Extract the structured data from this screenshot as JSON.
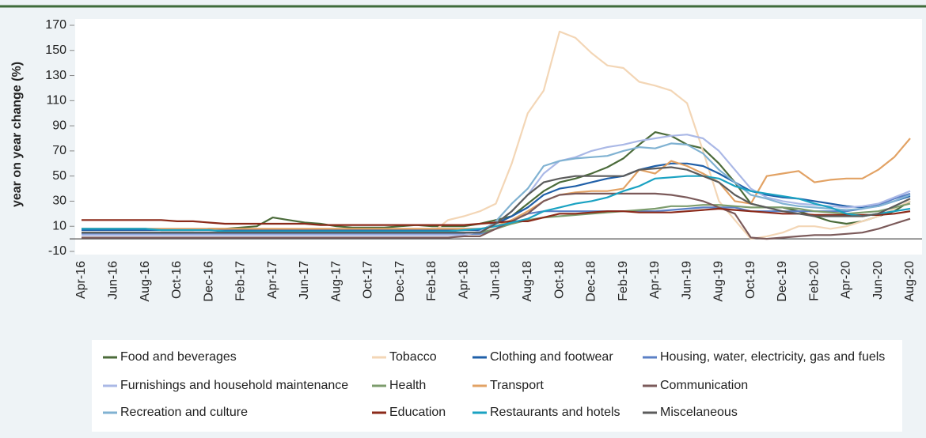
{
  "chart_data": {
    "type": "line",
    "ylabel": "year on year change (%)",
    "ylim": [
      -10,
      170
    ],
    "yticks": [
      -10,
      10,
      30,
      50,
      70,
      90,
      110,
      130,
      150,
      170
    ],
    "categories": [
      "Apr-16",
      null,
      "Jun-16",
      null,
      "Aug-16",
      null,
      "Oct-16",
      null,
      "Dec-16",
      null,
      "Feb-17",
      null,
      "Apr-17",
      null,
      "Jun-17",
      null,
      "Aug-17",
      null,
      "Oct-17",
      null,
      "Dec-17",
      null,
      "Feb-18",
      null,
      "Apr-18",
      null,
      "Jun-18",
      null,
      "Aug-18",
      null,
      "Oct-18",
      null,
      "Dec-18",
      null,
      "Feb-19",
      null,
      "Apr-19",
      null,
      "Jun-19",
      null,
      "Aug-19",
      null,
      "Oct-19",
      null,
      "Dec-19",
      null,
      "Feb-20",
      null,
      "Apr-20",
      null,
      "Jun-20",
      null,
      "Aug-20"
    ],
    "series": [
      {
        "name": "Food and beverages",
        "color": "#4b6b3a",
        "values": [
          8,
          8,
          8,
          8,
          8,
          7,
          7,
          7,
          8,
          8,
          9,
          10,
          17,
          15,
          13,
          12,
          10,
          9,
          9,
          9,
          10,
          11,
          10,
          10,
          10,
          12,
          15,
          18,
          28,
          38,
          45,
          48,
          52,
          57,
          64,
          75,
          85,
          82,
          75,
          72,
          60,
          45,
          28,
          25,
          25,
          22,
          18,
          14,
          12,
          14,
          18,
          22,
          30
        ]
      },
      {
        "name": "Tobacco",
        "color": "#f3d6b6",
        "values": [
          5,
          5,
          5,
          5,
          5,
          5,
          5,
          5,
          5,
          5,
          5,
          5,
          5,
          5,
          5,
          5,
          5,
          5,
          5,
          5,
          5,
          5,
          5,
          15,
          18,
          22,
          28,
          60,
          100,
          118,
          165,
          160,
          148,
          138,
          136,
          125,
          122,
          118,
          108,
          70,
          30,
          15,
          0,
          2,
          5,
          10,
          10,
          8,
          10,
          14,
          18,
          24,
          30
        ]
      },
      {
        "name": "Clothing and footwear",
        "color": "#1f5fa8",
        "values": [
          7,
          7,
          7,
          7,
          7,
          7,
          7,
          7,
          7,
          7,
          7,
          7,
          7,
          7,
          7,
          7,
          7,
          7,
          7,
          7,
          7,
          7,
          7,
          7,
          7,
          7,
          12,
          18,
          25,
          35,
          40,
          42,
          45,
          48,
          50,
          55,
          58,
          60,
          60,
          58,
          52,
          45,
          38,
          35,
          33,
          32,
          30,
          28,
          26,
          25,
          26,
          30,
          34
        ]
      },
      {
        "name": "Housing, water, electricity, gas and fuels",
        "color": "#5b80c6",
        "values": [
          4,
          4,
          4,
          4,
          4,
          4,
          4,
          4,
          4,
          4,
          4,
          4,
          4,
          4,
          4,
          4,
          4,
          4,
          4,
          4,
          4,
          4,
          4,
          4,
          4,
          4,
          8,
          15,
          20,
          22,
          22,
          22,
          22,
          22,
          22,
          22,
          22,
          23,
          24,
          25,
          25,
          25,
          22,
          22,
          22,
          22,
          22,
          22,
          22,
          24,
          27,
          32,
          36
        ]
      },
      {
        "name": "Furnishings and household maintenance",
        "color": "#aab8e6",
        "values": [
          3,
          3,
          3,
          3,
          3,
          3,
          3,
          3,
          3,
          3,
          3,
          3,
          3,
          3,
          3,
          3,
          3,
          3,
          3,
          3,
          3,
          3,
          3,
          3,
          3,
          6,
          12,
          22,
          35,
          52,
          62,
          65,
          70,
          73,
          75,
          78,
          80,
          82,
          83,
          80,
          70,
          55,
          40,
          33,
          30,
          28,
          27,
          26,
          25,
          26,
          28,
          33,
          38
        ]
      },
      {
        "name": "Health",
        "color": "#7c9c6c",
        "values": [
          5,
          5,
          5,
          5,
          5,
          5,
          5,
          5,
          5,
          5,
          5,
          5,
          5,
          5,
          5,
          5,
          5,
          5,
          5,
          5,
          5,
          5,
          5,
          5,
          5,
          5,
          8,
          12,
          15,
          17,
          18,
          19,
          20,
          21,
          22,
          23,
          24,
          26,
          26,
          27,
          27,
          26,
          25,
          25,
          25,
          24,
          22,
          21,
          20,
          21,
          22,
          25,
          28
        ]
      },
      {
        "name": "Transport",
        "color": "#e2a264",
        "values": [
          8,
          8,
          8,
          8,
          8,
          8,
          8,
          8,
          8,
          8,
          8,
          8,
          8,
          8,
          8,
          8,
          8,
          8,
          8,
          8,
          8,
          8,
          8,
          8,
          8,
          8,
          10,
          15,
          22,
          30,
          35,
          37,
          38,
          38,
          40,
          55,
          52,
          62,
          58,
          52,
          45,
          30,
          28,
          50,
          52,
          54,
          45,
          47,
          48,
          48,
          55,
          65,
          80
        ]
      },
      {
        "name": "Communication",
        "color": "#7b5a5a",
        "values": [
          1,
          1,
          1,
          1,
          1,
          1,
          1,
          1,
          1,
          1,
          1,
          1,
          1,
          1,
          1,
          1,
          1,
          1,
          1,
          1,
          1,
          1,
          1,
          1,
          2,
          2,
          8,
          14,
          20,
          30,
          35,
          36,
          36,
          36,
          36,
          36,
          36,
          35,
          33,
          30,
          25,
          20,
          1,
          0,
          1,
          2,
          3,
          3,
          4,
          5,
          8,
          12,
          16
        ]
      },
      {
        "name": "Recreation and culture",
        "color": "#80b2d2",
        "values": [
          5,
          5,
          5,
          5,
          5,
          5,
          5,
          5,
          5,
          5,
          5,
          5,
          5,
          5,
          5,
          5,
          5,
          5,
          5,
          5,
          5,
          5,
          5,
          5,
          5,
          5,
          14,
          28,
          40,
          58,
          62,
          64,
          65,
          66,
          70,
          73,
          72,
          76,
          75,
          68,
          55,
          45,
          35,
          32,
          28,
          26,
          25,
          24,
          23,
          24,
          26,
          30,
          35
        ]
      },
      {
        "name": "Education",
        "color": "#8b2a1a",
        "values": [
          15,
          15,
          15,
          15,
          15,
          15,
          14,
          14,
          13,
          12,
          12,
          12,
          12,
          12,
          12,
          11,
          11,
          11,
          11,
          11,
          11,
          11,
          11,
          11,
          11,
          12,
          13,
          14,
          14,
          17,
          20,
          20,
          21,
          22,
          22,
          21,
          21,
          21,
          22,
          23,
          24,
          23,
          22,
          21,
          20,
          20,
          19,
          19,
          19,
          19,
          19,
          20,
          22
        ]
      },
      {
        "name": "Restaurants and hotels",
        "color": "#1aa2c2",
        "values": [
          8,
          8,
          8,
          8,
          8,
          7,
          7,
          7,
          7,
          6,
          6,
          6,
          6,
          6,
          6,
          6,
          6,
          6,
          6,
          6,
          6,
          6,
          6,
          6,
          7,
          8,
          10,
          13,
          16,
          22,
          25,
          28,
          30,
          33,
          38,
          42,
          48,
          49,
          50,
          50,
          48,
          42,
          38,
          36,
          34,
          32,
          28,
          25,
          20,
          18,
          20,
          22,
          24
        ]
      },
      {
        "name": "Miscelaneous",
        "color": "#5c5c5c",
        "values": [
          5,
          5,
          5,
          5,
          5,
          5,
          5,
          5,
          5,
          5,
          5,
          5,
          5,
          5,
          5,
          5,
          5,
          5,
          5,
          5,
          5,
          5,
          5,
          5,
          5,
          5,
          12,
          22,
          35,
          45,
          48,
          50,
          50,
          50,
          50,
          55,
          56,
          57,
          55,
          50,
          45,
          35,
          28,
          25,
          22,
          20,
          18,
          18,
          18,
          18,
          20,
          26,
          32
        ]
      }
    ]
  }
}
